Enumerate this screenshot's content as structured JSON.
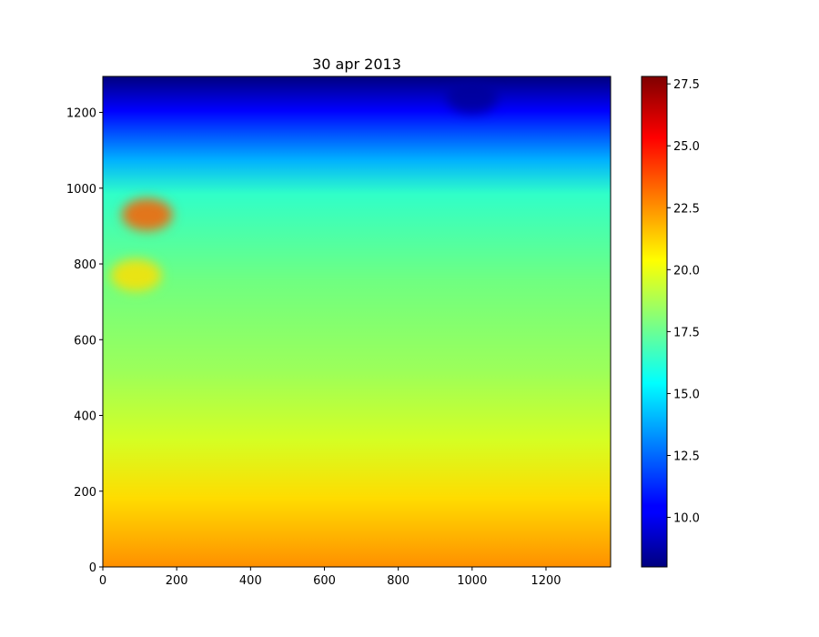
{
  "chart_data": {
    "type": "heatmap",
    "title": "30 apr 2013",
    "xlabel": "",
    "ylabel": "",
    "xlim": [
      0,
      1375
    ],
    "ylim": [
      0,
      1295
    ],
    "x_ticks": [
      0,
      200,
      400,
      600,
      800,
      1000,
      1200
    ],
    "y_ticks": [
      0,
      200,
      400,
      600,
      800,
      1000,
      1200
    ],
    "colormap": "jet",
    "colorbar": {
      "range": [
        8.0,
        27.8
      ],
      "ticks": [
        "10.0",
        "12.5",
        "15.0",
        "17.5",
        "20.0",
        "22.5",
        "25.0",
        "27.5"
      ],
      "tick_values": [
        10.0,
        12.5,
        15.0,
        17.5,
        20.0,
        22.5,
        25.0,
        27.5
      ]
    },
    "field_bands": [
      {
        "y_range": [
          1180,
          1295
        ],
        "value": 10.0
      },
      {
        "y_range": [
          1050,
          1180
        ],
        "value": 14.5
      },
      {
        "y_range": [
          700,
          1050
        ],
        "value": 18.0
      },
      {
        "y_range": [
          300,
          700
        ],
        "value": 19.0
      },
      {
        "y_range": [
          150,
          300
        ],
        "value": 20.5
      },
      {
        "y_range": [
          0,
          150
        ],
        "value": 22.5
      }
    ],
    "features": [
      {
        "name": "warm-filament-west",
        "x": 120,
        "y": 930,
        "value": 23.5
      },
      {
        "name": "warm-eddy",
        "x": 90,
        "y": 770,
        "value": 21.0
      },
      {
        "name": "cold-core-north",
        "x": 1000,
        "y": 1240,
        "value": 8.5
      }
    ],
    "grid": false,
    "legend": "none"
  }
}
